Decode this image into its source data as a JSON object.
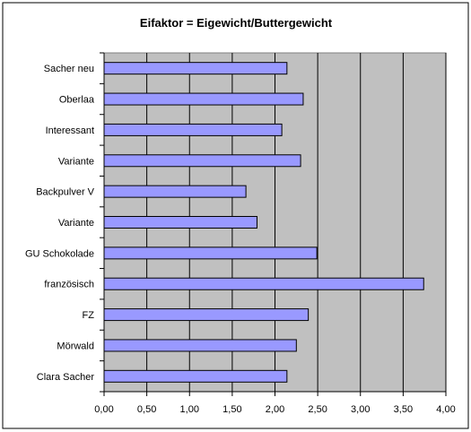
{
  "chart_data": {
    "type": "bar",
    "orientation": "horizontal",
    "title": "Eifaktor = Eigewicht/Buttergewicht",
    "xlabel": "",
    "ylabel": "",
    "xlim": [
      0,
      4
    ],
    "x_ticks": [
      "0,00",
      "0,50",
      "1,00",
      "1,50",
      "2,00",
      "2,50",
      "3,00",
      "3,50",
      "4,00"
    ],
    "grid": "vertical",
    "legend": "none",
    "categories": [
      "Sacher neu",
      "Oberlaa",
      "Interessant",
      "Variante",
      "Backpulver V",
      "Variante",
      "GU Schokolade",
      "französisch",
      "FZ",
      "Mörwald",
      "Clara Sacher"
    ],
    "values": [
      2.14,
      2.33,
      2.08,
      2.3,
      1.66,
      1.79,
      2.49,
      3.74,
      2.39,
      2.25,
      2.14
    ],
    "colors": {
      "bar_fill": "#9999ff",
      "bar_stroke": "#000000",
      "plot_bg": "#c0c0c0",
      "grid": "#000000"
    }
  }
}
